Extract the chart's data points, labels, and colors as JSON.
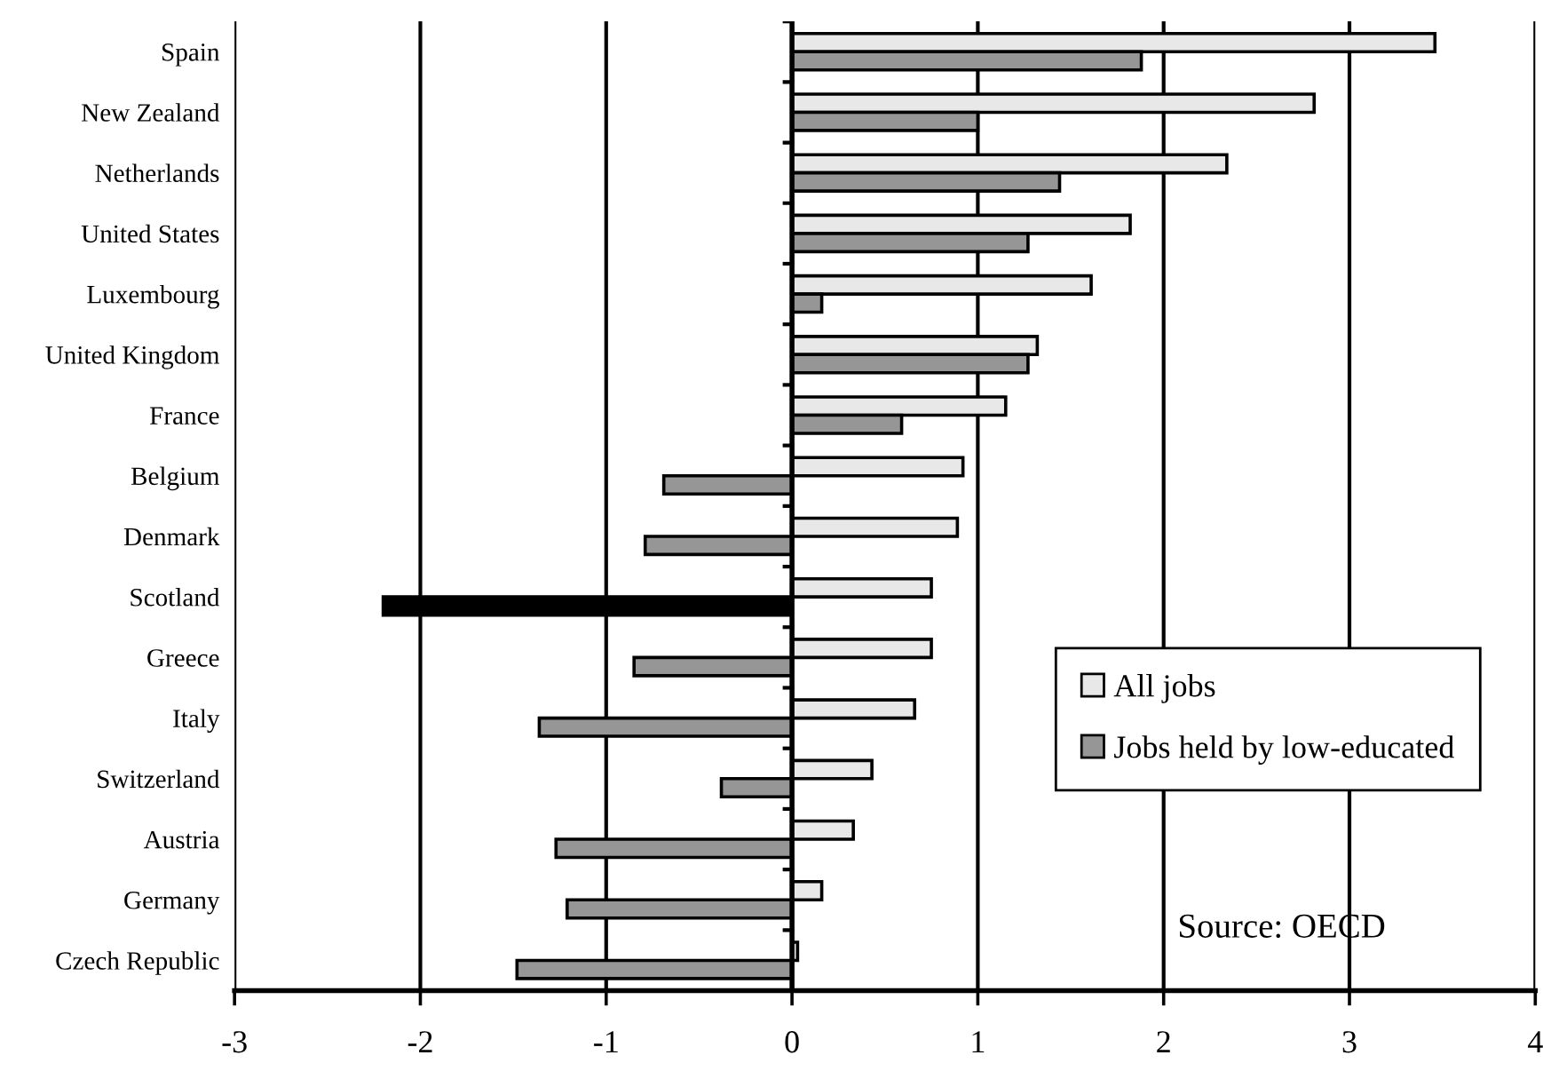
{
  "chart_data": {
    "type": "bar",
    "orientation": "horizontal",
    "categories": [
      "Spain",
      "New Zealand",
      "Netherlands",
      "United States",
      "Luxembourg",
      "United Kingdom",
      "France",
      "Belgium",
      "Denmark",
      "Scotland",
      "Greece",
      "Italy",
      "Switzerland",
      "Austria",
      "Germany",
      "Czech Republic"
    ],
    "series": [
      {
        "name": "All jobs",
        "color": "#e8e8e8",
        "values": [
          3.46,
          2.81,
          2.34,
          1.82,
          1.61,
          1.32,
          1.15,
          0.92,
          0.89,
          0.75,
          0.75,
          0.66,
          0.43,
          0.33,
          0.16,
          0.03
        ]
      },
      {
        "name": "Jobs held by low-educated",
        "color": "#969696",
        "colors": [
          "#969696",
          "#969696",
          "#969696",
          "#969696",
          "#969696",
          "#969696",
          "#969696",
          "#969696",
          "#969696",
          "#000000",
          "#969696",
          "#969696",
          "#969696",
          "#969696",
          "#969696",
          "#969696"
        ],
        "values": [
          1.88,
          1.0,
          1.44,
          1.27,
          0.16,
          1.27,
          0.59,
          -0.69,
          -0.79,
          -2.2,
          -0.85,
          -1.36,
          -0.38,
          -1.27,
          -1.21,
          -1.48
        ]
      }
    ],
    "xlim": [
      -3,
      4
    ],
    "xticks": [
      -3,
      -2,
      -1,
      0,
      1,
      2,
      3,
      4
    ],
    "grid": "x",
    "legend": "right",
    "annotations": [
      "Source: OECD"
    ]
  }
}
